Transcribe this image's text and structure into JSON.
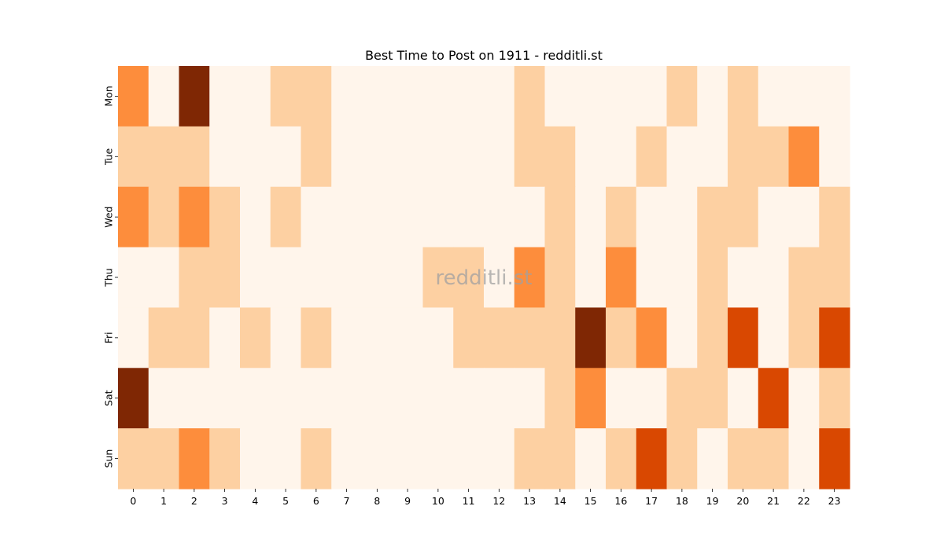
{
  "chart_data": {
    "type": "heatmap",
    "title": "Best Time to Post on 1911 - redditli.st",
    "watermark": "redditli.st",
    "xlabel": "",
    "ylabel": "",
    "x": [
      "0",
      "1",
      "2",
      "3",
      "4",
      "5",
      "6",
      "7",
      "8",
      "9",
      "10",
      "11",
      "12",
      "13",
      "14",
      "15",
      "16",
      "17",
      "18",
      "19",
      "20",
      "21",
      "22",
      "23"
    ],
    "y": [
      "Mon",
      "Tue",
      "Wed",
      "Thu",
      "Fri",
      "Sat",
      "Sun"
    ],
    "values": [
      [
        2,
        0,
        4,
        0,
        0,
        1,
        1,
        0,
        0,
        0,
        0,
        0,
        0,
        1,
        0,
        0,
        0,
        0,
        1,
        0,
        1,
        0,
        0,
        0
      ],
      [
        1,
        1,
        1,
        0,
        0,
        0,
        1,
        0,
        0,
        0,
        0,
        0,
        0,
        1,
        1,
        0,
        0,
        1,
        0,
        0,
        1,
        1,
        2,
        0
      ],
      [
        2,
        1,
        2,
        1,
        0,
        1,
        0,
        0,
        0,
        0,
        0,
        0,
        0,
        0,
        1,
        0,
        1,
        0,
        0,
        1,
        1,
        0,
        0,
        1
      ],
      [
        0,
        0,
        1,
        1,
        0,
        0,
        0,
        0,
        0,
        0,
        1,
        1,
        0,
        2,
        1,
        0,
        2,
        0,
        0,
        1,
        0,
        0,
        1,
        1
      ],
      [
        0,
        1,
        1,
        0,
        1,
        0,
        1,
        0,
        0,
        0,
        0,
        1,
        1,
        1,
        1,
        4,
        1,
        2,
        0,
        1,
        3,
        0,
        1,
        3
      ],
      [
        4,
        0,
        0,
        0,
        0,
        0,
        0,
        0,
        0,
        0,
        0,
        0,
        0,
        0,
        1,
        2,
        0,
        0,
        1,
        1,
        0,
        3,
        0,
        1
      ],
      [
        1,
        1,
        2,
        1,
        0,
        0,
        1,
        0,
        0,
        0,
        0,
        0,
        0,
        1,
        1,
        0,
        1,
        3,
        1,
        0,
        1,
        1,
        0,
        3
      ]
    ],
    "colorscale": [
      "#fff5eb",
      "#fdd0a2",
      "#fd8d3c",
      "#d94801",
      "#7f2704"
    ],
    "colorbar": false
  }
}
